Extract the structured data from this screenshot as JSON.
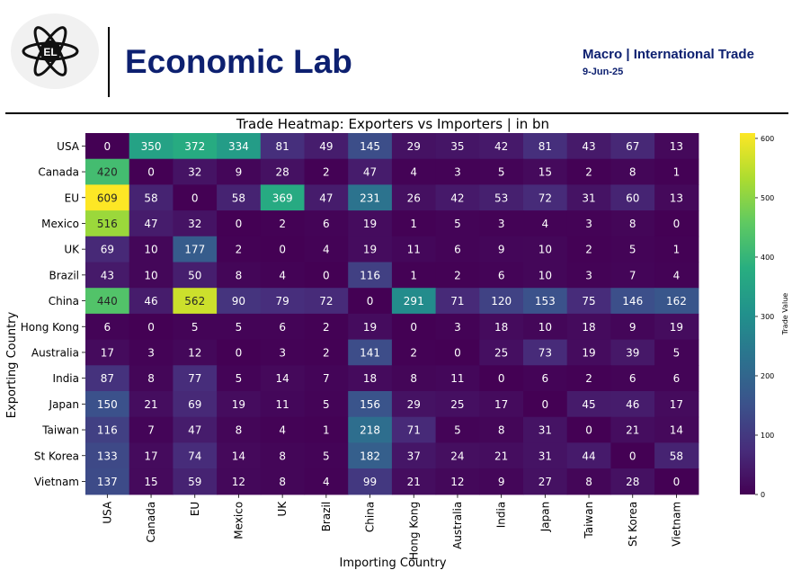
{
  "header": {
    "logo_text": "EL",
    "brand": "Economic Lab",
    "section": "Macro | International Trade",
    "date": "9-Jun-25"
  },
  "colors": {
    "brand": "#0d2070",
    "divider": "#000000",
    "logo_bg": "#f1f1f1"
  },
  "chart_data": {
    "type": "heatmap",
    "title": "Trade Heatmap: Exporters vs Importers | in bn",
    "xlabel": "Importing Country",
    "ylabel": "Exporting Country",
    "colorbar_label": "Trade Value",
    "colormap": "viridis",
    "vmin": 0,
    "vmax": 609,
    "colorbar_ticks": [
      "0",
      "100",
      "200",
      "300",
      "400",
      "500",
      "600"
    ],
    "colorbar_tick_values": [
      0,
      100,
      200,
      300,
      400,
      500,
      600
    ],
    "rows": [
      "USA",
      "Canada",
      "EU",
      "Mexico",
      "UK",
      "Brazil",
      "China",
      "Hong Kong",
      "Australia",
      "India",
      "Japan",
      "Taiwan",
      "St Korea",
      "Vietnam"
    ],
    "cols": [
      "USA",
      "Canada",
      "EU",
      "Mexico",
      "UK",
      "Brazil",
      "China",
      "Hong Kong",
      "Australia",
      "India",
      "Japan",
      "Taiwan",
      "St Korea",
      "Vietnam"
    ],
    "values": [
      [
        0,
        350,
        372,
        334,
        81,
        49,
        145,
        29,
        35,
        42,
        81,
        43,
        67,
        13
      ],
      [
        420,
        0,
        32,
        9,
        28,
        2,
        47,
        4,
        3,
        5,
        15,
        2,
        8,
        1
      ],
      [
        609,
        58,
        0,
        58,
        369,
        47,
        231,
        26,
        42,
        53,
        72,
        31,
        60,
        13
      ],
      [
        516,
        47,
        32,
        0,
        2,
        6,
        19,
        1,
        5,
        3,
        4,
        3,
        8,
        0
      ],
      [
        69,
        10,
        177,
        2,
        0,
        4,
        19,
        11,
        6,
        9,
        10,
        2,
        5,
        1
      ],
      [
        43,
        10,
        50,
        8,
        4,
        0,
        116,
        1,
        2,
        6,
        10,
        3,
        7,
        4
      ],
      [
        440,
        46,
        562,
        90,
        79,
        72,
        0,
        291,
        71,
        120,
        153,
        75,
        146,
        162
      ],
      [
        6,
        0,
        5,
        5,
        6,
        2,
        19,
        0,
        3,
        18,
        10,
        18,
        9,
        19
      ],
      [
        17,
        3,
        12,
        0,
        3,
        2,
        141,
        2,
        0,
        25,
        73,
        19,
        39,
        5
      ],
      [
        87,
        8,
        77,
        5,
        14,
        7,
        18,
        8,
        11,
        0,
        6,
        2,
        6,
        6
      ],
      [
        150,
        21,
        69,
        19,
        11,
        5,
        156,
        29,
        25,
        17,
        0,
        45,
        46,
        17
      ],
      [
        116,
        7,
        47,
        8,
        4,
        1,
        218,
        71,
        5,
        8,
        31,
        0,
        21,
        14
      ],
      [
        133,
        17,
        74,
        14,
        8,
        5,
        182,
        37,
        24,
        21,
        31,
        44,
        0,
        58
      ],
      [
        137,
        15,
        59,
        12,
        8,
        4,
        99,
        21,
        12,
        9,
        27,
        8,
        28,
        0
      ]
    ]
  }
}
